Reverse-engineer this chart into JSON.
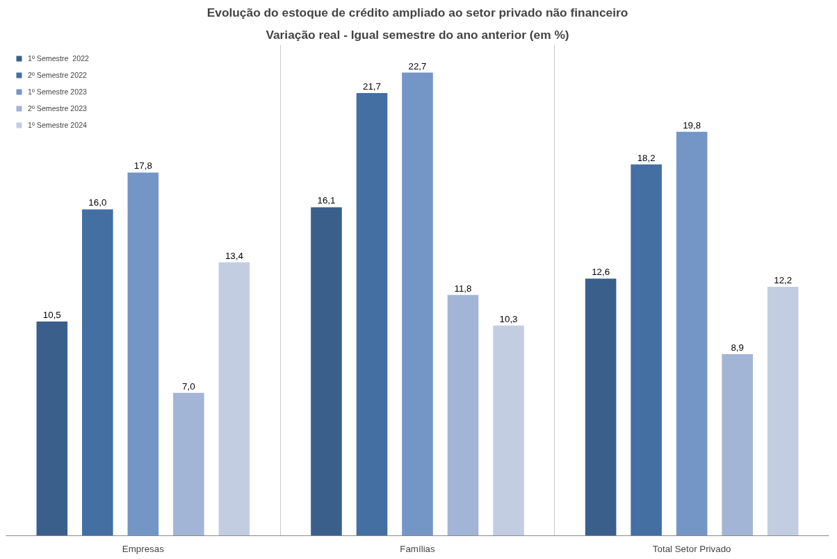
{
  "chart_data": {
    "type": "bar",
    "title": "Evolução do estoque de crédito ampliado ao setor privado não financeiro",
    "subtitle": "Variação real - Igual semestre do ano anterior (em %)",
    "categories": [
      "Empresas",
      "Famílias",
      "Total Setor Privado"
    ],
    "series": [
      {
        "name": "1º Semestre  2022",
        "color": "#3a5f8b",
        "values": [
          10.5,
          16.1,
          12.6
        ],
        "value_labels": [
          "10,5",
          "16,1",
          "12,6"
        ]
      },
      {
        "name": "2º Semestre 2022",
        "color": "#436fa3",
        "values": [
          16.0,
          21.7,
          18.2
        ],
        "value_labels": [
          "16,0",
          "21,7",
          "18,2"
        ]
      },
      {
        "name": "1º Semestre 2023",
        "color": "#7496c6",
        "values": [
          17.8,
          22.7,
          19.8
        ],
        "value_labels": [
          "17,8",
          "22,7",
          "19,8"
        ]
      },
      {
        "name": "2º Semestre 2023",
        "color": "#a3b5d6",
        "values": [
          7.0,
          11.8,
          8.9
        ],
        "value_labels": [
          "7,0",
          "11,8",
          "8,9"
        ]
      },
      {
        "name": "1º Semestre 2024",
        "color": "#c3cde2",
        "values": [
          13.4,
          10.3,
          12.2
        ],
        "value_labels": [
          "13,4",
          "10,3",
          "12,2"
        ]
      }
    ],
    "grid": "x",
    "legend": "top left"
  }
}
